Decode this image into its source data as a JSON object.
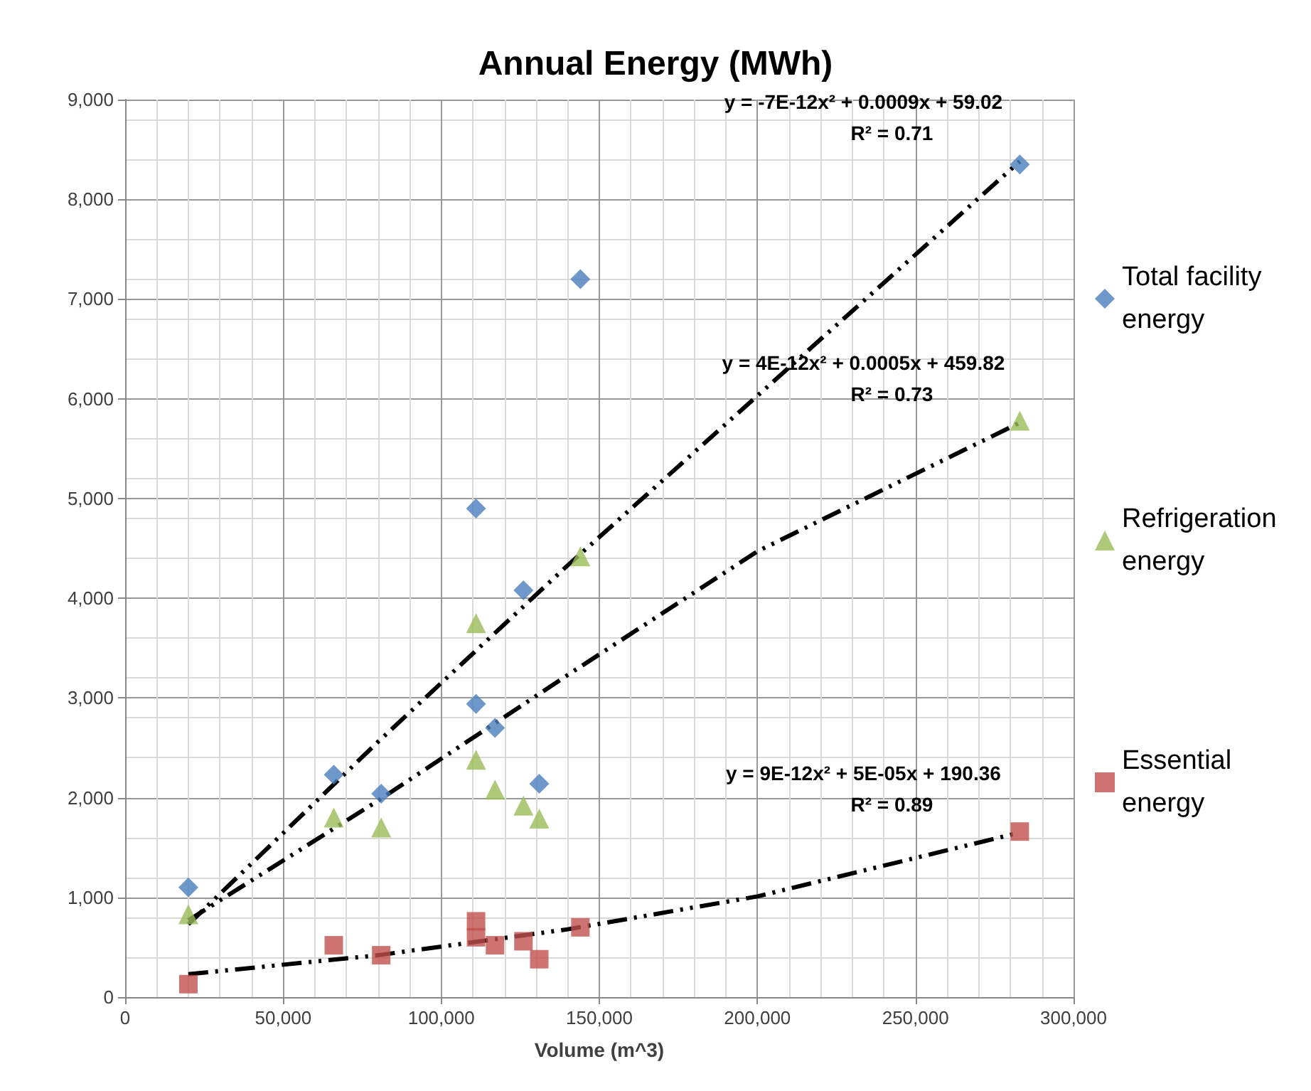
{
  "chart_data": {
    "type": "scatter",
    "title": "Annual Energy (MWh)",
    "xlabel": "Volume (m^3)",
    "x": [
      20000,
      66000,
      81000,
      111000,
      111000,
      117000,
      126000,
      131000,
      144000,
      283000
    ],
    "series": [
      {
        "name": "Total facility energy",
        "color": "#4a7ebb",
        "marker": "diamond",
        "values": [
          1100,
          2230,
          2040,
          4900,
          2940,
          2700,
          4080,
          2140,
          7200,
          8350
        ]
      },
      {
        "name": "Refrigeration energy",
        "color": "#9bbb59",
        "marker": "triangle",
        "values": [
          830,
          1800,
          1700,
          3750,
          2380,
          2080,
          1920,
          1790,
          4420,
          5780
        ]
      },
      {
        "name": "Essential energy",
        "color": "#c0504d",
        "marker": "square",
        "values": [
          130,
          520,
          420,
          760,
          600,
          520,
          560,
          380,
          700,
          1660
        ]
      },
      {
        "type": "line",
        "color": "#000000",
        "line_style": "dashed",
        "marker": "none",
        "x": [
          20000,
          80000,
          140000,
          200000,
          283000
        ],
        "values": [
          730,
          2560,
          4330,
          6030,
          8380
        ]
      },
      {
        "type": "line",
        "color": "#000000",
        "line_style": "dashed",
        "marker": "none",
        "x": [
          20000,
          80000,
          140000,
          200000,
          283000
        ],
        "values": [
          770,
          1970,
          3230,
          4470,
          5760
        ]
      },
      {
        "type": "line",
        "color": "#000000",
        "line_style": "dashed",
        "marker": "none",
        "x": [
          20000,
          80000,
          140000,
          200000,
          283000
        ],
        "values": [
          230,
          420,
          680,
          1010,
          1650
        ]
      }
    ],
    "xlim": [
      0,
      300000
    ],
    "xticks": [
      {
        "value": 0,
        "label": "0"
      },
      {
        "value": 50000,
        "label": "50,000"
      },
      {
        "value": 100000,
        "label": "100,000"
      },
      {
        "value": 150000,
        "label": "150,000"
      },
      {
        "value": 200000,
        "label": "200,000"
      },
      {
        "value": 250000,
        "label": "250,000"
      },
      {
        "value": 300000,
        "label": "300,000"
      }
    ],
    "ylim": [
      0,
      9000
    ],
    "yticks": [
      {
        "value": 0,
        "label": "0"
      },
      {
        "value": 1000,
        "label": "1,000"
      },
      {
        "value": 2000,
        "label": "2,000"
      },
      {
        "value": 3000,
        "label": "3,000"
      },
      {
        "value": 4000,
        "label": "4,000"
      },
      {
        "value": 5000,
        "label": "5,000"
      },
      {
        "value": 6000,
        "label": "6,000"
      },
      {
        "value": 7000,
        "label": "7,000"
      },
      {
        "value": 8000,
        "label": "8,000"
      },
      {
        "value": 9000,
        "label": "9,000"
      }
    ],
    "grid": true,
    "legend": "right",
    "annotations": [
      "y = -7E-12x² + 0.0009x + 59.02",
      "R² = 0.71",
      "y = 4E-12x² + 0.0005x + 459.82",
      "R² = 0.73",
      "y = 9E-12x² + 5E-05x + 190.36",
      "R² = 0.89"
    ]
  }
}
